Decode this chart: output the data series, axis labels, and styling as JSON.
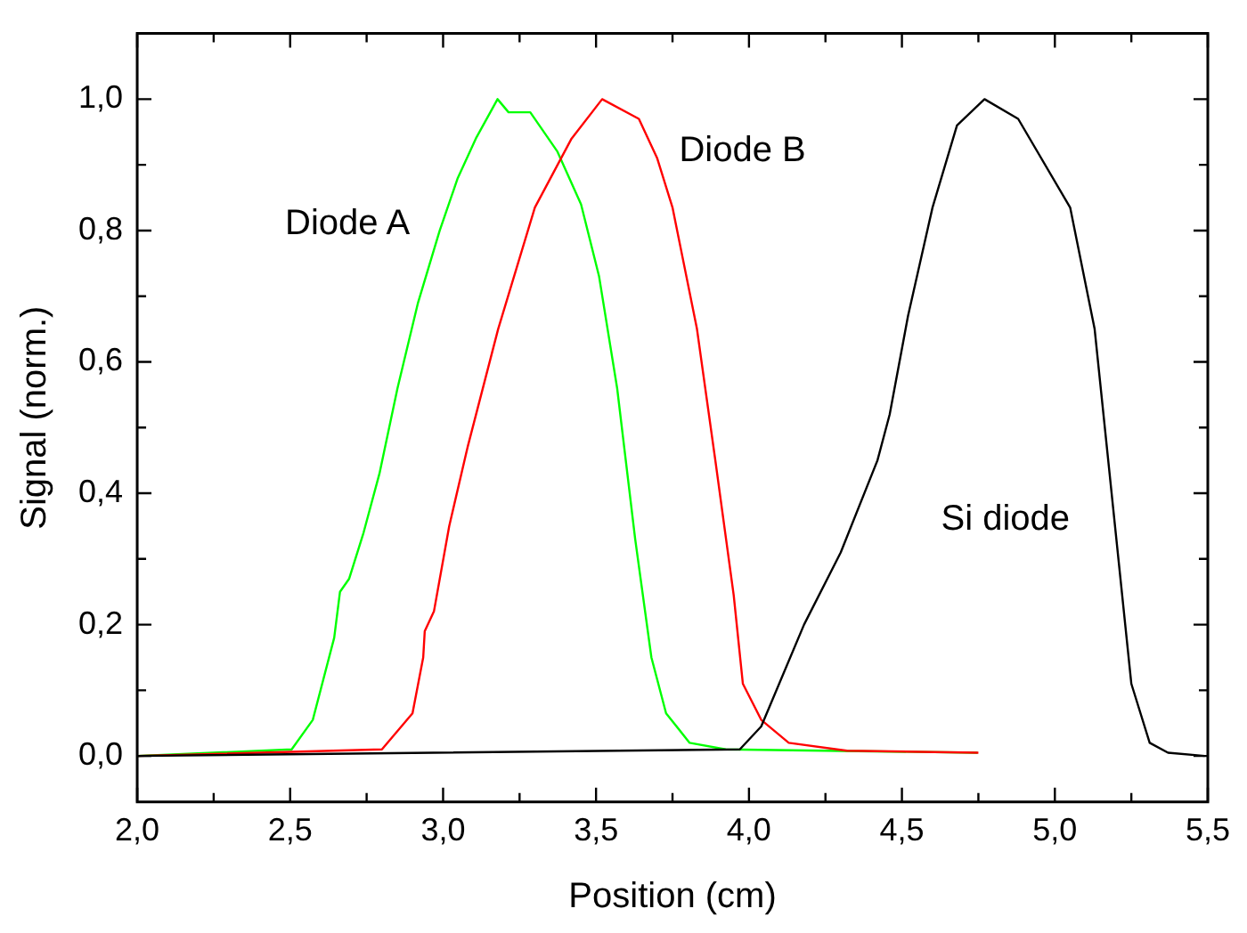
{
  "chart_data": {
    "type": "line",
    "xlabel": "Position (cm)",
    "ylabel": "Signal (norm.)",
    "xlim": [
      2.0,
      5.5
    ],
    "ylim": [
      -0.07,
      1.1
    ],
    "xticks": [
      {
        "value": 2.0,
        "label": "2,0"
      },
      {
        "value": 2.25,
        "label": null
      },
      {
        "value": 2.5,
        "label": "2,5"
      },
      {
        "value": 2.75,
        "label": null
      },
      {
        "value": 3.0,
        "label": "3,0"
      },
      {
        "value": 3.25,
        "label": null
      },
      {
        "value": 3.5,
        "label": "3,5"
      },
      {
        "value": 3.75,
        "label": null
      },
      {
        "value": 4.0,
        "label": "4,0"
      },
      {
        "value": 4.25,
        "label": null
      },
      {
        "value": 4.5,
        "label": "4,5"
      },
      {
        "value": 4.75,
        "label": null
      },
      {
        "value": 5.0,
        "label": "5,0"
      },
      {
        "value": 5.25,
        "label": null
      },
      {
        "value": 5.5,
        "label": "5,5"
      }
    ],
    "yticks": [
      {
        "value": 0.0,
        "label": "0,0"
      },
      {
        "value": 0.1,
        "label": null
      },
      {
        "value": 0.2,
        "label": "0,2"
      },
      {
        "value": 0.3,
        "label": null
      },
      {
        "value": 0.4,
        "label": "0,4"
      },
      {
        "value": 0.5,
        "label": null
      },
      {
        "value": 0.6,
        "label": "0,6"
      },
      {
        "value": 0.7,
        "label": null
      },
      {
        "value": 0.8,
        "label": "0,8"
      },
      {
        "value": 0.9,
        "label": null
      },
      {
        "value": 1.0,
        "label": "1,0"
      }
    ],
    "grid": false,
    "legend": false,
    "marker": "none",
    "line_style": "solid",
    "series": [
      {
        "name": "Si diode",
        "color": "#000000",
        "x": [
          2.0,
          3.97,
          4.04,
          4.18,
          4.3,
          4.42,
          4.46,
          4.52,
          4.6,
          4.68,
          4.77,
          4.88,
          5.05,
          5.13,
          5.19,
          5.25,
          5.31,
          5.37,
          5.49
        ],
        "values": [
          0,
          0.01,
          0.045,
          0.2,
          0.31,
          0.45,
          0.52,
          0.67,
          0.835,
          0.96,
          1.0,
          0.97,
          0.835,
          0.65,
          0.38,
          0.11,
          0.02,
          0.005,
          0
        ]
      },
      {
        "name": "Diode B",
        "color": "#ff0000",
        "x": [
          2.0,
          2.8,
          2.9,
          2.935,
          2.94,
          2.97,
          3.02,
          3.08,
          3.18,
          3.3,
          3.42,
          3.52,
          3.64,
          3.7,
          3.75,
          3.83,
          3.89,
          3.95,
          3.98,
          4.04,
          4.13,
          4.32,
          4.75
        ],
        "values": [
          0,
          0.01,
          0.065,
          0.15,
          0.19,
          0.22,
          0.35,
          0.47,
          0.65,
          0.835,
          0.94,
          1.0,
          0.97,
          0.91,
          0.835,
          0.65,
          0.45,
          0.245,
          0.11,
          0.055,
          0.02,
          0.008,
          0.005
        ]
      },
      {
        "name": "Diode A",
        "color": "#00ff00",
        "x": [
          2.0,
          2.505,
          2.574,
          2.644,
          2.663,
          2.693,
          2.74,
          2.792,
          2.851,
          2.918,
          2.989,
          3.048,
          3.107,
          3.178,
          3.214,
          3.285,
          3.374,
          3.451,
          3.51,
          3.569,
          3.628,
          3.681,
          3.729,
          3.806,
          3.924,
          4.747
        ],
        "values": [
          0,
          0.01,
          0.055,
          0.18,
          0.25,
          0.27,
          0.34,
          0.43,
          0.56,
          0.69,
          0.8,
          0.88,
          0.94,
          1.0,
          0.98,
          0.98,
          0.92,
          0.84,
          0.73,
          0.56,
          0.33,
          0.15,
          0.065,
          0.02,
          0.01,
          0.005
        ]
      }
    ]
  }
}
